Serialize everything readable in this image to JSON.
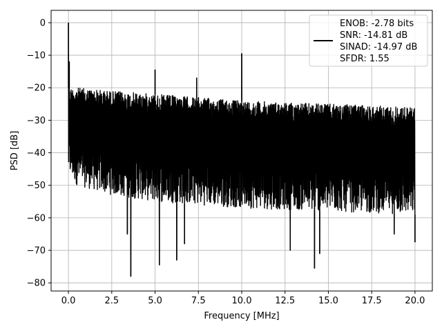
{
  "chart_data": {
    "type": "line",
    "xlabel": "Frequency [MHz]",
    "ylabel": "PSD [dB]",
    "xlim": [
      -1.0,
      21.0
    ],
    "ylim": [
      -82.5,
      3.8
    ],
    "xticks": [
      0.0,
      2.5,
      5.0,
      7.5,
      10.0,
      12.5,
      15.0,
      17.5,
      20.0
    ],
    "xtick_labels": [
      "0.0",
      "2.5",
      "5.0",
      "7.5",
      "10.0",
      "12.5",
      "15.0",
      "17.5",
      "20.0"
    ],
    "yticks": [
      0,
      -10,
      -20,
      -30,
      -40,
      -50,
      -60,
      -70,
      -80
    ],
    "ytick_labels": [
      "0",
      "−10",
      "−20",
      "−30",
      "−40",
      "−50",
      "−60",
      "−70",
      "−80"
    ],
    "grid": true,
    "legend_position": "top-right",
    "line_color": "#000000",
    "series": [
      {
        "legend_lines": [
          "ENOB: -2.78 bits",
          "SNR: -14.81 dB",
          "SINAD: -14.97 dB",
          "SFDR: 1.55"
        ],
        "noise_envelope": {
          "x": [
            0.0,
            0.5,
            2.5,
            5.0,
            7.5,
            10.0,
            12.5,
            15.0,
            17.5,
            20.0
          ],
          "upper": [
            -20,
            -20,
            -21,
            -22,
            -23,
            -24,
            -24.5,
            -25,
            -25.5,
            -26
          ],
          "lower": [
            -47,
            -50,
            -53,
            -55,
            -56,
            -57,
            -57.5,
            -58,
            -58.5,
            -59
          ]
        },
        "peaks": [
          {
            "x": 0.0,
            "y": 0.0
          },
          {
            "x": 0.05,
            "y": -12.0
          },
          {
            "x": 5.0,
            "y": -14.5
          },
          {
            "x": 7.4,
            "y": -17.0
          },
          {
            "x": 10.0,
            "y": -9.5
          }
        ],
        "dips": [
          {
            "x": 3.6,
            "y": -78.0
          },
          {
            "x": 5.25,
            "y": -74.5
          },
          {
            "x": 6.25,
            "y": -73.0
          },
          {
            "x": 3.4,
            "y": -65.0
          },
          {
            "x": 6.7,
            "y": -68.0
          },
          {
            "x": 12.8,
            "y": -70.0
          },
          {
            "x": 14.2,
            "y": -75.5
          },
          {
            "x": 14.5,
            "y": -71.0
          },
          {
            "x": 18.8,
            "y": -65.0
          },
          {
            "x": 20.0,
            "y": -67.5
          }
        ]
      }
    ]
  }
}
